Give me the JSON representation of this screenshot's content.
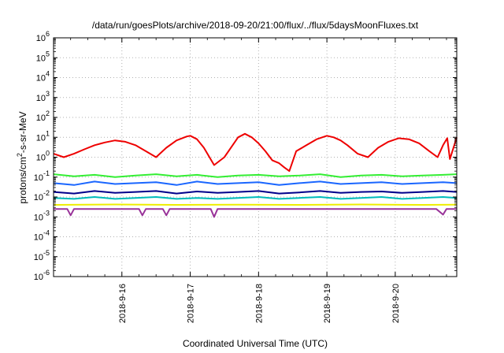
{
  "chart_data": {
    "type": "line",
    "title": "/data/run/goesPlots/archive/2018-09-20/21:00/flux/../flux/5daysMoonFluxes.txt",
    "xlabel": "Coordinated Universal Time (UTC)",
    "ylabel_main": "protons/cm",
    "ylabel_sup": "2",
    "ylabel_rest": "-s-sr-MeV",
    "x_ticks": [
      "2018-9-16",
      "2018-9-17",
      "2018-9-18",
      "2018-9-19",
      "2018-9-20"
    ],
    "x_range_days": [
      15.0,
      20.9
    ],
    "y_scale": "log",
    "y_ticks": [
      {
        "base": "10",
        "exp": "6"
      },
      {
        "base": "10",
        "exp": "5"
      },
      {
        "base": "10",
        "exp": "4"
      },
      {
        "base": "10",
        "exp": "3"
      },
      {
        "base": "10",
        "exp": "2"
      },
      {
        "base": "10",
        "exp": "1"
      },
      {
        "base": "10",
        "exp": "0"
      },
      {
        "base": "10",
        "exp": "-1"
      },
      {
        "base": "10",
        "exp": "-2"
      },
      {
        "base": "10",
        "exp": "-3"
      },
      {
        "base": "10",
        "exp": "-4"
      },
      {
        "base": "10",
        "exp": "-5"
      },
      {
        "base": "10",
        "exp": "-6"
      }
    ],
    "ylim": [
      1e-06,
      1000000.0
    ],
    "grid": true,
    "series": [
      {
        "color": "#ee0000",
        "x": [
          15.0,
          15.15,
          15.3,
          15.45,
          15.6,
          15.75,
          15.9,
          16.05,
          16.2,
          16.35,
          16.5,
          16.65,
          16.8,
          16.95,
          17.0,
          17.1,
          17.2,
          17.35,
          17.5,
          17.62,
          17.7,
          17.8,
          17.9,
          18.0,
          18.1,
          18.2,
          18.3,
          18.38,
          18.45,
          18.55,
          18.7,
          18.85,
          19.0,
          19.1,
          19.2,
          19.3,
          19.45,
          19.6,
          19.75,
          19.9,
          20.05,
          20.2,
          20.35,
          20.5,
          20.62,
          20.7,
          20.76,
          20.8,
          20.9
        ],
        "y": [
          1.5,
          1.0,
          1.5,
          2.5,
          4.0,
          5.5,
          7.0,
          6.0,
          4.0,
          2.0,
          1.0,
          3.0,
          7.0,
          11.0,
          12.0,
          8.0,
          3.0,
          0.4,
          1.0,
          4.0,
          10.0,
          15.0,
          10.0,
          5.0,
          2.0,
          0.7,
          0.5,
          0.3,
          0.2,
          2.0,
          4.0,
          8.0,
          12.0,
          10.0,
          7.0,
          4.0,
          1.5,
          1.0,
          3.0,
          6.0,
          9.0,
          8.0,
          5.0,
          2.0,
          1.0,
          4.0,
          9.0,
          0.8,
          10.0
        ]
      },
      {
        "color": "#33ee33",
        "x": [
          15.0,
          15.3,
          15.6,
          15.9,
          16.2,
          16.5,
          16.8,
          17.1,
          17.4,
          17.7,
          18.0,
          18.3,
          18.6,
          18.9,
          19.2,
          19.5,
          19.8,
          20.1,
          20.4,
          20.7,
          20.9
        ],
        "y": [
          0.14,
          0.11,
          0.13,
          0.1,
          0.12,
          0.14,
          0.11,
          0.13,
          0.1,
          0.12,
          0.13,
          0.11,
          0.12,
          0.14,
          0.1,
          0.12,
          0.13,
          0.11,
          0.12,
          0.13,
          0.14
        ]
      },
      {
        "color": "#1a66ff",
        "x": [
          15.0,
          15.3,
          15.6,
          15.9,
          16.2,
          16.5,
          16.8,
          17.1,
          17.4,
          17.7,
          18.0,
          18.3,
          18.6,
          18.9,
          19.2,
          19.5,
          19.8,
          20.1,
          20.4,
          20.7,
          20.9
        ],
        "y": [
          0.05,
          0.04,
          0.06,
          0.045,
          0.05,
          0.055,
          0.04,
          0.06,
          0.045,
          0.05,
          0.055,
          0.04,
          0.05,
          0.06,
          0.045,
          0.05,
          0.055,
          0.045,
          0.05,
          0.055,
          0.05
        ]
      },
      {
        "color": "#00008b",
        "x": [
          15.0,
          15.3,
          15.6,
          15.9,
          16.2,
          16.5,
          16.8,
          17.1,
          17.4,
          17.7,
          18.0,
          18.3,
          18.6,
          18.9,
          19.2,
          19.5,
          19.8,
          20.1,
          20.4,
          20.7,
          20.9
        ],
        "y": [
          0.018,
          0.015,
          0.02,
          0.016,
          0.018,
          0.02,
          0.015,
          0.019,
          0.016,
          0.018,
          0.02,
          0.015,
          0.017,
          0.02,
          0.016,
          0.018,
          0.019,
          0.016,
          0.018,
          0.02,
          0.018
        ]
      },
      {
        "color": "#00bbbb",
        "x": [
          15.0,
          15.3,
          15.6,
          15.9,
          16.2,
          16.5,
          16.8,
          17.1,
          17.4,
          17.7,
          18.0,
          18.3,
          18.6,
          18.9,
          19.2,
          19.5,
          19.8,
          20.1,
          20.4,
          20.7,
          20.9
        ],
        "y": [
          0.009,
          0.008,
          0.01,
          0.008,
          0.009,
          0.01,
          0.008,
          0.009,
          0.008,
          0.009,
          0.01,
          0.008,
          0.009,
          0.01,
          0.008,
          0.009,
          0.01,
          0.008,
          0.009,
          0.01,
          0.009
        ]
      },
      {
        "color": "#eeee00",
        "x": [
          15.0,
          15.9,
          16.8,
          17.7,
          18.6,
          19.5,
          20.4,
          20.9
        ],
        "y": [
          0.004,
          0.0042,
          0.004,
          0.0041,
          0.004,
          0.0042,
          0.004,
          0.0041
        ]
      },
      {
        "color": "#993399",
        "x": [
          15.0,
          15.2,
          15.25,
          15.3,
          16.0,
          16.25,
          16.3,
          16.35,
          16.6,
          16.65,
          16.7,
          17.3,
          17.35,
          17.4,
          18.0,
          18.6,
          19.3,
          20.0,
          20.6,
          20.7,
          20.75,
          20.9
        ],
        "y": [
          0.0025,
          0.0025,
          0.0012,
          0.0025,
          0.0025,
          0.0025,
          0.0012,
          0.0025,
          0.0025,
          0.0012,
          0.0025,
          0.0025,
          0.001,
          0.0025,
          0.0025,
          0.0025,
          0.0025,
          0.0025,
          0.0025,
          0.0013,
          0.0025,
          0.0025
        ]
      }
    ]
  }
}
